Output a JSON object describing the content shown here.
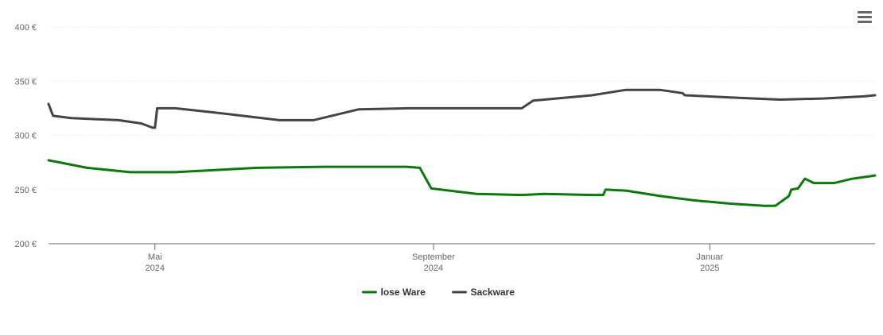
{
  "chart_data": {
    "type": "line",
    "title": "",
    "xlabel": "",
    "ylabel": "",
    "ylim": [
      200,
      400
    ],
    "y_ticks": [
      {
        "value": 200,
        "label": "200 €"
      },
      {
        "value": 250,
        "label": "250 €"
      },
      {
        "value": 300,
        "label": "300 €"
      },
      {
        "value": 350,
        "label": "350 €"
      },
      {
        "value": 400,
        "label": "400 €"
      }
    ],
    "x_range": [
      "2024-03-15",
      "2025-03-15"
    ],
    "x_ticks": [
      {
        "date": "2024-05-01",
        "label_line1": "Mai",
        "label_line2": "2024"
      },
      {
        "date": "2024-09-01",
        "label_line1": "September",
        "label_line2": "2024"
      },
      {
        "date": "2025-01-01",
        "label_line1": "Januar",
        "label_line2": "2025"
      }
    ],
    "grid": true,
    "legend_position": "bottom-center",
    "series": [
      {
        "name": "lose Ware",
        "color": "#0b7a0b",
        "points": [
          [
            "2024-03-15",
            277
          ],
          [
            "2024-04-01",
            270
          ],
          [
            "2024-04-20",
            266
          ],
          [
            "2024-05-10",
            266
          ],
          [
            "2024-06-15",
            270
          ],
          [
            "2024-07-15",
            271
          ],
          [
            "2024-08-20",
            271
          ],
          [
            "2024-08-26",
            270
          ],
          [
            "2024-08-31",
            251
          ],
          [
            "2024-09-20",
            246
          ],
          [
            "2024-10-10",
            245
          ],
          [
            "2024-10-20",
            246
          ],
          [
            "2024-11-10",
            245
          ],
          [
            "2024-11-15",
            245
          ],
          [
            "2024-11-16",
            250
          ],
          [
            "2024-11-25",
            249
          ],
          [
            "2024-12-10",
            244
          ],
          [
            "2024-12-25",
            240
          ],
          [
            "2025-01-10",
            237
          ],
          [
            "2025-01-25",
            235
          ],
          [
            "2025-01-30",
            235
          ],
          [
            "2025-02-05",
            244
          ],
          [
            "2025-02-06",
            250
          ],
          [
            "2025-02-09",
            251
          ],
          [
            "2025-02-12",
            260
          ],
          [
            "2025-02-16",
            256
          ],
          [
            "2025-02-25",
            256
          ],
          [
            "2025-03-05",
            260
          ],
          [
            "2025-03-12",
            262
          ],
          [
            "2025-03-15",
            263
          ]
        ]
      },
      {
        "name": "Sackware",
        "color": "#444444",
        "points": [
          [
            "2024-03-15",
            329
          ],
          [
            "2024-03-17",
            318
          ],
          [
            "2024-03-25",
            316
          ],
          [
            "2024-04-15",
            314
          ],
          [
            "2024-04-25",
            311
          ],
          [
            "2024-04-30",
            307
          ],
          [
            "2024-05-01",
            307
          ],
          [
            "2024-05-02",
            325
          ],
          [
            "2024-05-10",
            325
          ],
          [
            "2024-06-01",
            320
          ],
          [
            "2024-06-25",
            314
          ],
          [
            "2024-07-10",
            314
          ],
          [
            "2024-07-30",
            324
          ],
          [
            "2024-08-20",
            325
          ],
          [
            "2024-09-10",
            325
          ],
          [
            "2024-10-05",
            325
          ],
          [
            "2024-10-10",
            325
          ],
          [
            "2024-10-15",
            332
          ],
          [
            "2024-11-10",
            337
          ],
          [
            "2024-11-25",
            342
          ],
          [
            "2024-12-10",
            342
          ],
          [
            "2024-12-20",
            339
          ],
          [
            "2024-12-21",
            337
          ],
          [
            "2025-01-10",
            335
          ],
          [
            "2025-02-01",
            333
          ],
          [
            "2025-02-20",
            334
          ],
          [
            "2025-03-10",
            336
          ],
          [
            "2025-03-15",
            337
          ]
        ]
      }
    ]
  },
  "ui": {
    "menu_icon": "hamburger-menu-icon"
  }
}
